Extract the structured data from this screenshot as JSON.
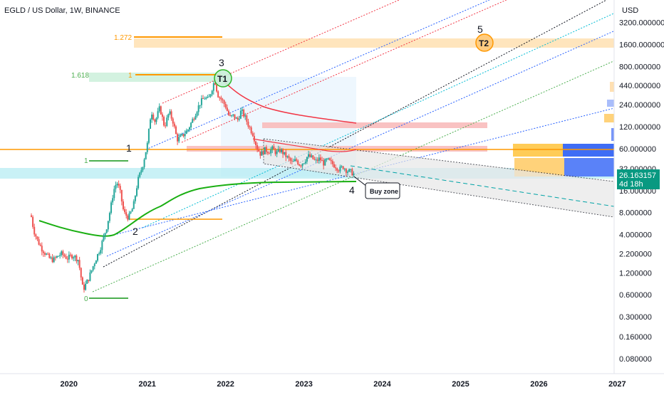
{
  "chart_data": {
    "type": "candlestick",
    "title": "EGLD / US Dollar, 1W, BINANCE",
    "currency": "USD",
    "scale": "log",
    "y_ticks": [
      "3200.000000",
      "1600.000000",
      "800.000000",
      "440.000000",
      "240.000000",
      "120.000000",
      "60.000000",
      "32.000000",
      "16.000000",
      "8.000000",
      "4.000000",
      "2.200000",
      "1.200000",
      "0.600000",
      "0.300000",
      "0.160000",
      "0.080000"
    ],
    "y_tick_values": [
      3200,
      1600,
      800,
      440,
      240,
      120,
      60,
      32,
      16,
      8,
      4,
      2.2,
      1.2,
      0.6,
      0.3,
      0.16,
      0.08
    ],
    "x_ticks": [
      "2020",
      "2021",
      "2022",
      "2023",
      "2024",
      "2025",
      "2026",
      "2027"
    ],
    "x_tick_values": [
      2020,
      2021,
      2022,
      2023,
      2024,
      2025,
      2026,
      2027
    ],
    "x_range": [
      2019.12,
      2026.96
    ],
    "y_range": [
      0.05,
      6500
    ],
    "last_price": "26.163157",
    "countdown": "4d 18h",
    "price_path": [
      [
        2019.52,
        7.0
      ],
      [
        2019.55,
        4.6
      ],
      [
        2019.6,
        3.3
      ],
      [
        2019.65,
        2.6
      ],
      [
        2019.7,
        2.2
      ],
      [
        2019.75,
        1.9
      ],
      [
        2019.8,
        1.8
      ],
      [
        2019.9,
        2.2
      ],
      [
        2019.98,
        1.9
      ],
      [
        2020.05,
        2.1
      ],
      [
        2020.12,
        1.8
      ],
      [
        2020.18,
        0.7
      ],
      [
        2020.25,
        1.0
      ],
      [
        2020.32,
        1.6
      ],
      [
        2020.4,
        2.6
      ],
      [
        2020.48,
        5.0
      ],
      [
        2020.53,
        9.0
      ],
      [
        2020.57,
        16.0
      ],
      [
        2020.61,
        21.0
      ],
      [
        2020.65,
        16.0
      ],
      [
        2020.7,
        8.0
      ],
      [
        2020.76,
        6.8
      ],
      [
        2020.82,
        9.5
      ],
      [
        2020.88,
        22.0
      ],
      [
        2020.94,
        35.0
      ],
      [
        2021.0,
        68.0
      ],
      [
        2021.05,
        200.0
      ],
      [
        2021.1,
        140.0
      ],
      [
        2021.16,
        220.0
      ],
      [
        2021.22,
        120.0
      ],
      [
        2021.28,
        190.0
      ],
      [
        2021.33,
        140.0
      ],
      [
        2021.38,
        80.0
      ],
      [
        2021.45,
        90.0
      ],
      [
        2021.52,
        110.0
      ],
      [
        2021.58,
        150.0
      ],
      [
        2021.63,
        200.0
      ],
      [
        2021.68,
        260.0
      ],
      [
        2021.73,
        300.0
      ],
      [
        2021.78,
        280.0
      ],
      [
        2021.82,
        380.0
      ],
      [
        2021.86,
        520.0
      ],
      [
        2021.9,
        330.0
      ],
      [
        2021.95,
        280.0
      ],
      [
        2022.0,
        230.0
      ],
      [
        2022.05,
        160.0
      ],
      [
        2022.1,
        170.0
      ],
      [
        2022.15,
        145.0
      ],
      [
        2022.2,
        200.0
      ],
      [
        2022.25,
        160.0
      ],
      [
        2022.3,
        120.0
      ],
      [
        2022.35,
        95.0
      ],
      [
        2022.4,
        62.0
      ],
      [
        2022.45,
        50.0
      ],
      [
        2022.5,
        58.0
      ],
      [
        2022.55,
        55.0
      ],
      [
        2022.6,
        60.0
      ],
      [
        2022.65,
        52.0
      ],
      [
        2022.7,
        58.0
      ],
      [
        2022.75,
        50.0
      ],
      [
        2022.8,
        44.0
      ],
      [
        2022.85,
        38.0
      ],
      [
        2022.9,
        42.0
      ],
      [
        2022.95,
        36.0
      ],
      [
        2023.0,
        40.0
      ],
      [
        2023.05,
        48.0
      ],
      [
        2023.1,
        45.0
      ],
      [
        2023.15,
        40.0
      ],
      [
        2023.2,
        44.0
      ],
      [
        2023.25,
        38.0
      ],
      [
        2023.3,
        42.0
      ],
      [
        2023.35,
        38.0
      ],
      [
        2023.4,
        35.0
      ],
      [
        2023.45,
        31.0
      ],
      [
        2023.5,
        34.0
      ],
      [
        2023.55,
        30.0
      ],
      [
        2023.6,
        29.0
      ],
      [
        2023.65,
        26.16
      ]
    ],
    "annotations": [
      {
        "text": "1.272",
        "color": "#ff9800"
      },
      {
        "text": "1.618",
        "color": "#4caf50"
      },
      {
        "text": "1",
        "color": "#ff9800"
      },
      {
        "text": "1",
        "color": "#4caf50"
      },
      {
        "text": "0",
        "color": "#4caf50"
      },
      {
        "text": "1",
        "color": "#131722"
      },
      {
        "text": "2",
        "color": "#131722"
      },
      {
        "text": "3",
        "color": "#131722"
      },
      {
        "text": "4",
        "color": "#131722"
      },
      {
        "text": "5",
        "color": "#131722"
      },
      {
        "text": "T1",
        "color": "#131722"
      },
      {
        "text": "T2",
        "color": "#131722"
      },
      {
        "text": "Buy zone",
        "color": "#131722"
      }
    ],
    "colors": {
      "up": "#26a69a",
      "down": "#ef5350",
      "price_label_bg": "#089981",
      "vwap_green": "#1aaf12",
      "ma_red": "#f23645",
      "fib_orange": "#ff9800",
      "fib_green": "#4caf50",
      "zone_orange": "#ffcc80",
      "zone_red": "#f8bbbb",
      "zone_cyan": "#b2ebf2",
      "vp_blue": "#2962ff",
      "vp_yellow": "#ffc24a"
    }
  }
}
